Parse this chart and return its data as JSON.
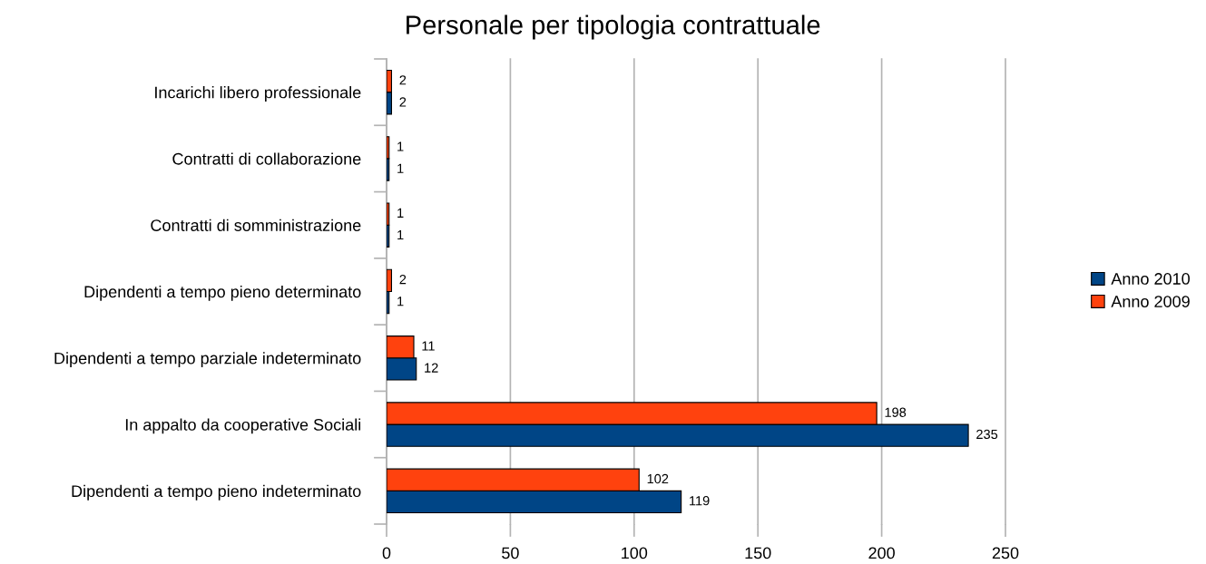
{
  "chart_data": {
    "type": "bar",
    "orientation": "horizontal",
    "title": "Personale per tipologia contrattuale",
    "categories": [
      "Incarichi libero professionale",
      "Contratti di collaborazione",
      "Contratti di somministrazione",
      "Dipendenti a tempo pieno determinato",
      "Dipendenti a tempo parziale indeterminato",
      "In appalto da cooperative Sociali",
      "Dipendenti a tempo pieno indeterminato"
    ],
    "series": [
      {
        "name": "Anno 2010",
        "color": "#004586",
        "values": [
          2,
          1,
          1,
          1,
          12,
          235,
          119
        ]
      },
      {
        "name": "Anno 2009",
        "color": "#ff420e",
        "values": [
          2,
          1,
          1,
          2,
          11,
          198,
          102
        ]
      }
    ],
    "xlim": [
      0,
      250
    ],
    "xticks": [
      0,
      50,
      100,
      150,
      200,
      250
    ],
    "grid": "x",
    "legend": "right",
    "data_labels": true
  }
}
